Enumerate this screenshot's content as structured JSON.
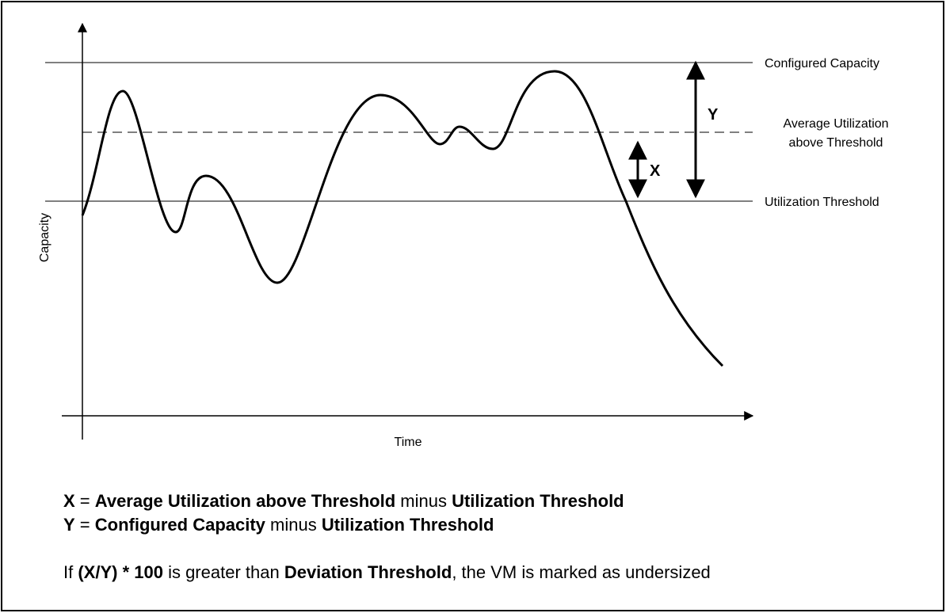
{
  "diagram": {
    "y_axis_label": "Capacity",
    "x_axis_label": "Time",
    "lines": {
      "configured_capacity": "Configured Capacity",
      "average_utilization": [
        "Average Utilization",
        "above Threshold"
      ],
      "utilization_threshold": "Utilization Threshold"
    },
    "arrows": {
      "y": "Y",
      "x": "X"
    }
  },
  "formulas": [
    [
      {
        "text": "X",
        "bold": true
      },
      {
        "text": " = ",
        "bold": false
      },
      {
        "text": "Average Utilization above Threshold",
        "bold": true
      },
      {
        "text": " minus ",
        "bold": false
      },
      {
        "text": "Utilization Threshold",
        "bold": true
      }
    ],
    [
      {
        "text": "Y",
        "bold": true
      },
      {
        "text": " = ",
        "bold": false
      },
      {
        "text": "Configured Capacity",
        "bold": true
      },
      {
        "text": " minus ",
        "bold": false
      },
      {
        "text": "Utilization Threshold",
        "bold": true
      }
    ],
    [
      {
        "text": "If ",
        "bold": false
      },
      {
        "text": "(X/Y) * 100",
        "bold": true
      },
      {
        "text": " is greater than ",
        "bold": false
      },
      {
        "text": "Deviation Threshold",
        "bold": true
      },
      {
        "text": ", the VM is marked as undersized",
        "bold": false
      }
    ]
  ]
}
